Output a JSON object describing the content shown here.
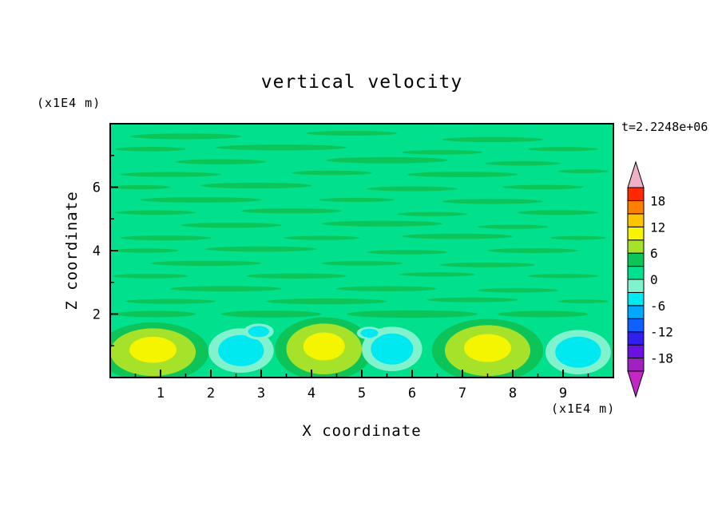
{
  "chart_data": {
    "type": "contour",
    "title": "vertical velocity",
    "xlabel": "X coordinate",
    "ylabel": "Z coordinate",
    "x_unit": "(x1E4 m)",
    "y_unit": "(x1E4 m)",
    "annotation": "t=2.2248e+06",
    "x_range": [
      0,
      10
    ],
    "y_range": [
      0,
      8
    ],
    "x_ticks": [
      1,
      2,
      3,
      4,
      5,
      6,
      7,
      8,
      9
    ],
    "y_ticks": [
      2,
      4,
      6
    ],
    "x_minor_step": 0.5,
    "y_minor_step": 1,
    "contour_interval": 3,
    "colorbar": {
      "range": [
        -21,
        21
      ],
      "labels": [
        18,
        12,
        6,
        0,
        -6,
        -12,
        -18
      ],
      "colors_bottom_to_top": [
        "#A020C0",
        "#6A10E0",
        "#3020F0",
        "#1060FF",
        "#00A8FF",
        "#00E8F0",
        "#80F2CE",
        "#00E08D",
        "#0CC457",
        "#A6E22A",
        "#F5F500",
        "#FFC400",
        "#FF8000",
        "#FF2800"
      ],
      "arrow_top_color": "#F0B0C8",
      "arrow_bottom_color": "#C428C4"
    },
    "field": {
      "background": "#00E08D",
      "streak_color": "#0CC457",
      "aqua": "#80F2CE",
      "cyan": "#00E8F0",
      "green_yellow": "#A6E22A",
      "yellow": "#F5F500",
      "streaks": [
        [
          1.5,
          7.6,
          2.2,
          0.18
        ],
        [
          4.8,
          7.7,
          1.8,
          0.15
        ],
        [
          7.6,
          7.5,
          2.0,
          0.16
        ],
        [
          0.8,
          7.2,
          1.4,
          0.14
        ],
        [
          3.4,
          7.25,
          2.6,
          0.18
        ],
        [
          6.6,
          7.1,
          1.6,
          0.14
        ],
        [
          9.0,
          7.2,
          1.4,
          0.13
        ],
        [
          2.2,
          6.8,
          1.8,
          0.16
        ],
        [
          5.5,
          6.85,
          2.4,
          0.2
        ],
        [
          8.2,
          6.75,
          1.5,
          0.14
        ],
        [
          1.2,
          6.4,
          2.0,
          0.15
        ],
        [
          4.4,
          6.45,
          1.6,
          0.14
        ],
        [
          7.0,
          6.4,
          2.2,
          0.17
        ],
        [
          9.4,
          6.5,
          1.0,
          0.12
        ],
        [
          0.6,
          6.0,
          1.2,
          0.13
        ],
        [
          2.9,
          6.05,
          2.2,
          0.18
        ],
        [
          6.0,
          5.95,
          1.8,
          0.15
        ],
        [
          8.6,
          6.0,
          1.6,
          0.14
        ],
        [
          1.8,
          5.6,
          2.4,
          0.17
        ],
        [
          4.9,
          5.6,
          1.5,
          0.13
        ],
        [
          7.6,
          5.55,
          2.0,
          0.16
        ],
        [
          0.9,
          5.2,
          1.6,
          0.14
        ],
        [
          3.6,
          5.25,
          2.0,
          0.16
        ],
        [
          6.4,
          5.15,
          1.4,
          0.13
        ],
        [
          8.9,
          5.2,
          1.6,
          0.15
        ],
        [
          2.4,
          4.8,
          2.0,
          0.16
        ],
        [
          5.4,
          4.85,
          2.4,
          0.18
        ],
        [
          8.0,
          4.75,
          1.4,
          0.13
        ],
        [
          1.1,
          4.4,
          1.8,
          0.15
        ],
        [
          4.2,
          4.4,
          1.5,
          0.13
        ],
        [
          6.9,
          4.45,
          2.2,
          0.17
        ],
        [
          9.3,
          4.4,
          1.1,
          0.12
        ],
        [
          0.7,
          4.0,
          1.3,
          0.13
        ],
        [
          3.0,
          4.05,
          2.2,
          0.17
        ],
        [
          5.9,
          3.95,
          1.6,
          0.14
        ],
        [
          8.4,
          4.0,
          1.8,
          0.15
        ],
        [
          1.9,
          3.6,
          2.2,
          0.16
        ],
        [
          5.0,
          3.6,
          1.6,
          0.14
        ],
        [
          7.5,
          3.55,
          1.9,
          0.15
        ],
        [
          0.8,
          3.2,
          1.5,
          0.14
        ],
        [
          3.7,
          3.2,
          2.0,
          0.16
        ],
        [
          6.5,
          3.25,
          1.5,
          0.13
        ],
        [
          9.0,
          3.2,
          1.4,
          0.13
        ],
        [
          2.3,
          2.8,
          2.2,
          0.17
        ],
        [
          5.5,
          2.8,
          2.0,
          0.16
        ],
        [
          8.1,
          2.75,
          1.6,
          0.14
        ],
        [
          1.2,
          2.4,
          1.8,
          0.15
        ],
        [
          4.3,
          2.4,
          2.4,
          0.18
        ],
        [
          7.2,
          2.45,
          1.8,
          0.15
        ],
        [
          9.4,
          2.4,
          1.0,
          0.12
        ],
        [
          0.9,
          2.0,
          1.6,
          0.2
        ],
        [
          3.2,
          2.0,
          2.0,
          0.22
        ],
        [
          6.0,
          2.0,
          2.6,
          0.24
        ],
        [
          8.6,
          2.0,
          1.8,
          0.2
        ]
      ],
      "blobs": [
        {
          "type": "updraft",
          "x": 0.85,
          "z": 0.8,
          "rx": 0.85,
          "rz": 0.75
        },
        {
          "type": "downdraft",
          "x": 2.6,
          "z": 0.85,
          "rx": 0.65,
          "rz": 0.7
        },
        {
          "type": "downdraft",
          "x": 2.95,
          "z": 1.45,
          "rx": 0.3,
          "rz": 0.25
        },
        {
          "type": "updraft",
          "x": 4.25,
          "z": 0.9,
          "rx": 0.75,
          "rz": 0.8
        },
        {
          "type": "downdraft",
          "x": 5.6,
          "z": 0.9,
          "rx": 0.6,
          "rz": 0.7
        },
        {
          "type": "downdraft",
          "x": 5.15,
          "z": 1.4,
          "rx": 0.25,
          "rz": 0.2
        },
        {
          "type": "updraft",
          "x": 7.5,
          "z": 0.85,
          "rx": 0.85,
          "rz": 0.8
        },
        {
          "type": "downdraft",
          "x": 9.3,
          "z": 0.8,
          "rx": 0.65,
          "rz": 0.7
        }
      ]
    }
  }
}
